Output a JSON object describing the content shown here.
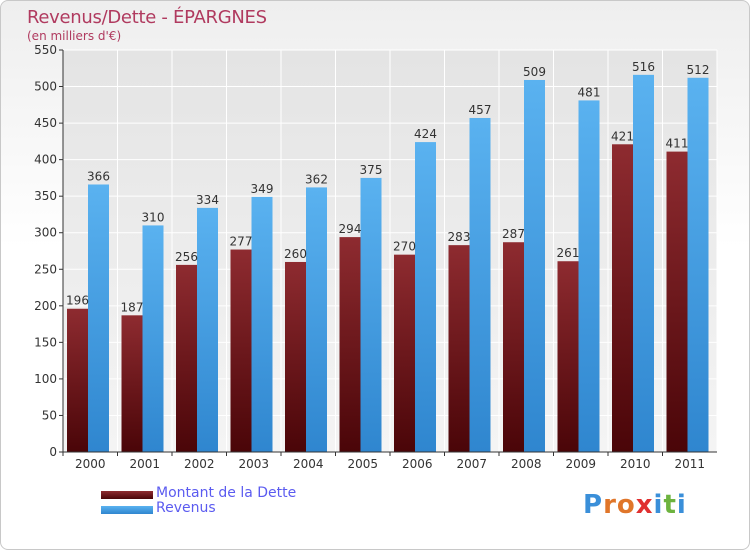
{
  "title": "Revenus/Dette - ÉPARGNES",
  "unit_label": "(en milliers d'€)",
  "legend": [
    {
      "label": "Montant de la Dette",
      "color": "#7a1c20"
    },
    {
      "label": "Revenus",
      "color": "#4aa3e6"
    }
  ],
  "logo": {
    "text": "Proxiti",
    "letters": [
      "P",
      "r",
      "o",
      "x",
      "i",
      "t",
      "i"
    ],
    "colors": [
      "#3a8fd9",
      "#e0762a",
      "#e0762a",
      "#e03030",
      "#3a8fd9",
      "#6db33f",
      "#3a8fd9"
    ]
  },
  "chart_data": {
    "type": "bar",
    "categories": [
      "2000",
      "2001",
      "2002",
      "2003",
      "2004",
      "2005",
      "2006",
      "2007",
      "2008",
      "2009",
      "2010",
      "2011"
    ],
    "series": [
      {
        "name": "Montant de la Dette",
        "values": [
          196,
          187,
          256,
          277,
          260,
          294,
          270,
          283,
          287,
          261,
          421,
          411
        ],
        "color": "#7a1c20"
      },
      {
        "name": "Revenus",
        "values": [
          366,
          310,
          334,
          349,
          362,
          375,
          424,
          457,
          509,
          481,
          516,
          512
        ],
        "color": "#4aa3e6"
      }
    ],
    "ylim": [
      0,
      550
    ],
    "yticks": [
      0,
      50,
      100,
      150,
      200,
      250,
      300,
      350,
      400,
      450,
      500,
      550
    ],
    "grid": true
  }
}
